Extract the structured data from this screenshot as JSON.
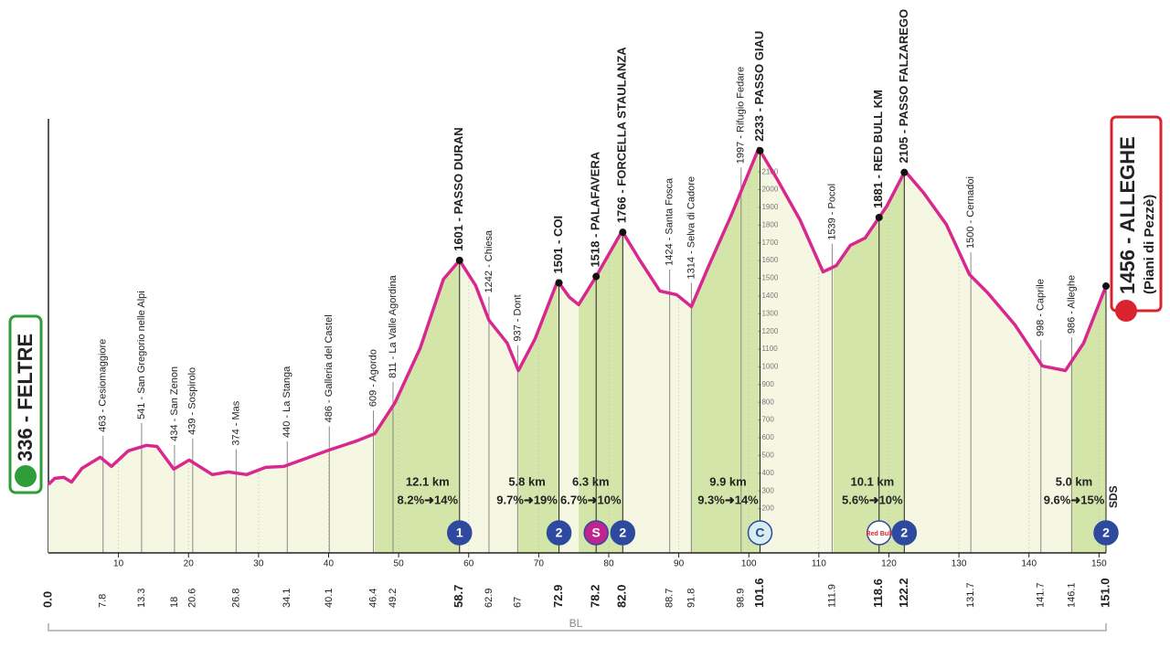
{
  "chart_data": {
    "type": "area",
    "xlim": [
      0,
      151
    ],
    "ylim": [
      -50,
      2400
    ],
    "xticks": [
      10,
      20,
      30,
      40,
      50,
      60,
      70,
      80,
      90,
      100,
      110,
      120,
      130,
      140,
      150
    ],
    "yticks": [
      200,
      300,
      400,
      500,
      600,
      700,
      800,
      900,
      1000,
      1100,
      1200,
      1300,
      1400,
      1500,
      1600,
      1700,
      1800,
      1900,
      2000,
      2100
    ],
    "color": "#d8288f",
    "x": [
      0,
      0.9,
      2.2,
      3.3,
      4.8,
      7.4,
      9.0,
      11.4,
      14.0,
      15.5,
      17.9,
      20.1,
      23.4,
      25.7,
      28.3,
      31.0,
      33.6,
      40.1,
      44.0,
      46.6,
      49.5,
      53.1,
      56.4,
      58.7,
      61.0,
      62.9,
      65.5,
      67.1,
      69.5,
      72.7,
      74.4,
      75.7,
      78.2,
      81.9,
      84.5,
      87.3,
      89.7,
      91.8,
      94.3,
      97.5,
      101.4,
      104.0,
      107.3,
      110.6,
      112.5,
      114.5,
      116.6,
      119.7,
      122.3,
      124.9,
      128.2,
      131.5,
      134.1,
      138.0,
      141.9,
      145.2,
      147.8,
      151.0
    ],
    "values": [
      336,
      371,
      376,
      350,
      428,
      490,
      438,
      526,
      557,
      551,
      423,
      474,
      392,
      407,
      392,
      433,
      438,
      531,
      582,
      623,
      799,
      1108,
      1495,
      1601,
      1459,
      1263,
      1134,
      979,
      1160,
      1485,
      1392,
      1351,
      1510,
      1766,
      1598,
      1428,
      1407,
      1340,
      1572,
      1856,
      2233,
      2062,
      1830,
      1536,
      1572,
      1686,
      1727,
      1907,
      2105,
      1985,
      1804,
      1521,
      1418,
      1237,
      1005,
      979,
      1134,
      1456
    ],
    "start": {
      "label": "336 - FELTRE"
    },
    "finish": {
      "label": "1456 - ALLEGHE",
      "sub": "(Piani di Pezzè)",
      "tag": "SDS"
    },
    "province": "BL",
    "waypoints": [
      {
        "km": {
          "value": 0,
          "label": "0.0"
        },
        "summit": true
      },
      {
        "km": 7.8,
        "label": "463 - Cesiomaggiore"
      },
      {
        "km": 13.3,
        "label": "541 - San Gregorio nelle Alpi"
      },
      {
        "km": 18.0,
        "label": "434 - San Zenon"
      },
      {
        "km": 20.6,
        "label": "439 - Sospirolo"
      },
      {
        "km": 26.8,
        "label": "374 - Mas"
      },
      {
        "km": 34.1,
        "label": "440 - La Stanga"
      },
      {
        "km": 40.1,
        "label": "486 - Galleria del Castel"
      },
      {
        "km": 46.4,
        "label": "609 - Agordo"
      },
      {
        "km": 49.2,
        "label": "811 - La Valle Agordina"
      },
      {
        "km": 58.7,
        "label": "1601 - PASSO DURAN",
        "summit": true,
        "badge": "1",
        "climb": {
          "length": 12.1,
          "length_label": "12.1 km",
          "gradient": "8.2%➜14%"
        }
      },
      {
        "km": 62.9,
        "label": "1242 - Chiesa"
      },
      {
        "km": 67.0,
        "label": "937 - Dont"
      },
      {
        "km": 72.9,
        "label": "1501 - COI",
        "summit": true,
        "badge": "2",
        "climb": {
          "length": 5.8,
          "length_label": "5.8 km",
          "gradient": "9.7%➜19%"
        }
      },
      {
        "km": 78.2,
        "label": "1518 - PALAFAVERA",
        "summit": true,
        "badge": "S"
      },
      {
        "km": {
          "value": 82,
          "label": "82.0"
        },
        "label": "1766 - FORCELLA STAULANZA",
        "summit": true,
        "badge": "2",
        "climb": {
          "length": 6.3,
          "length_label": "6.3 km",
          "gradient": "6.7%➜10%"
        }
      },
      {
        "km": 88.7,
        "label": "1424 - Santa Fosca"
      },
      {
        "km": 91.8,
        "label": "1314 - Selva di Cadore"
      },
      {
        "km": 98.9,
        "label": "1997 - Rifugio Fedare"
      },
      {
        "km": 101.6,
        "label": "2233 - PASSO GIAU",
        "summit": true,
        "badge": "C",
        "climb": {
          "length": 9.9,
          "length_label": "9.9 km",
          "gradient": "9.3%➜14%"
        }
      },
      {
        "km": 111.9,
        "label": "1539 - Pocol"
      },
      {
        "km": 118.6,
        "label": "1881 - RED BULL KM",
        "summit": true,
        "badge": "Red Bull"
      },
      {
        "km": 122.2,
        "label": "2105 - PASSO FALZAREGO",
        "summit": true,
        "badge": "2",
        "climb": {
          "length": 10.1,
          "length_label": "10.1 km",
          "gradient": "5.6%➜10%"
        }
      },
      {
        "km": 131.7,
        "label": "1500 - Cernadoi"
      },
      {
        "km": 141.7,
        "label": "998 - Caprile"
      },
      {
        "km": 146.1,
        "label": "986 - Alleghe"
      },
      {
        "km": {
          "value": 151,
          "label": "151.0"
        },
        "summit": true,
        "badge": "2",
        "climb": {
          "length": 5.0,
          "length_label": "5.0 km",
          "gradient": "9.6%➜15%"
        }
      }
    ]
  }
}
